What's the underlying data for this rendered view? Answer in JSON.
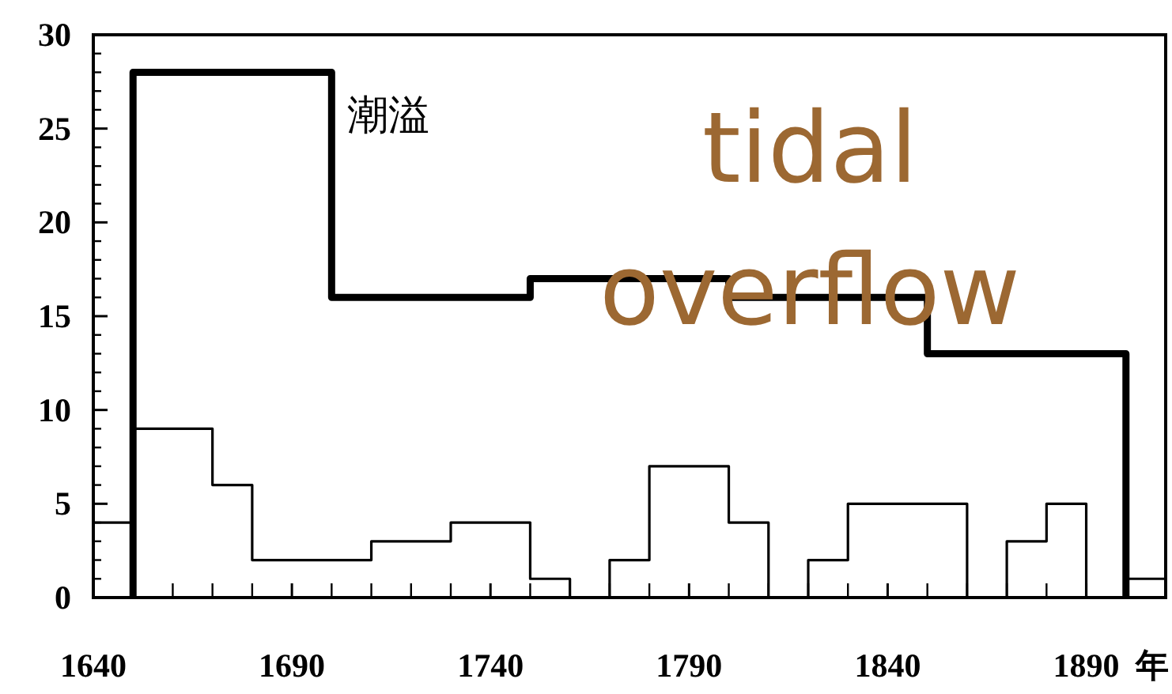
{
  "chart_data": {
    "type": "step",
    "xlabel": "年",
    "xlim": [
      1640,
      1910
    ],
    "ylim": [
      0,
      30
    ],
    "xticks": [
      1640,
      1690,
      1740,
      1790,
      1840,
      1890
    ],
    "yticks": [
      0,
      5,
      10,
      15,
      20,
      25,
      30
    ],
    "grid": false,
    "series": [
      {
        "name": "潮溢",
        "color": "#000000",
        "x": [
          1650,
          1650,
          1700,
          1750,
          1800,
          1850,
          1900
        ],
        "values": [
          0,
          28,
          16,
          17,
          16,
          13,
          0
        ]
      },
      {
        "color": "#000000",
        "x": [
          1640,
          1650,
          1670,
          1680,
          1710,
          1730,
          1750,
          1760,
          1770,
          1780,
          1800,
          1810,
          1820,
          1830,
          1860,
          1870,
          1880,
          1890,
          1900,
          1910
        ],
        "values": [
          4,
          9,
          6,
          2,
          3,
          4,
          1,
          0,
          2,
          7,
          4,
          0,
          2,
          5,
          0,
          3,
          5,
          0,
          1,
          0
        ]
      }
    ],
    "annotations": [
      "tidal overflow"
    ]
  }
}
